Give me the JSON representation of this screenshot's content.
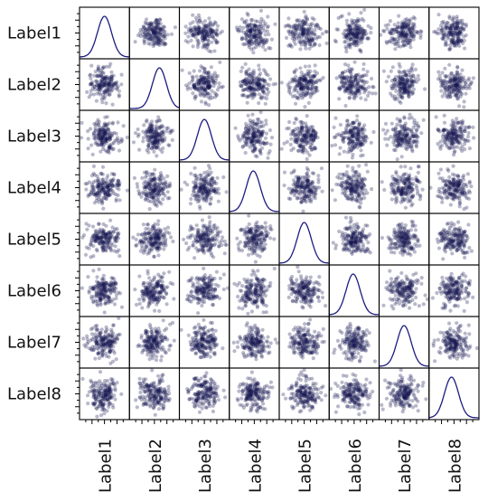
{
  "chart_data": {
    "type": "scatter_matrix",
    "variables": [
      "Label1",
      "Label2",
      "Label3",
      "Label4",
      "Label5",
      "Label6",
      "Label7",
      "Label8"
    ]
  }
}
